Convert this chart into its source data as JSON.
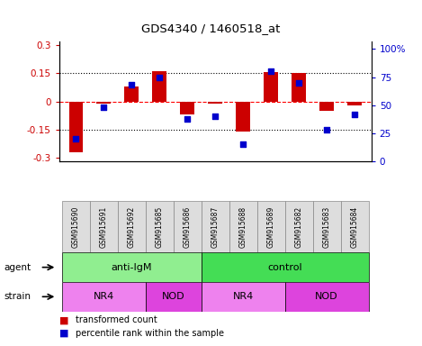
{
  "title": "GDS4340 / 1460518_at",
  "samples": [
    "GSM915690",
    "GSM915691",
    "GSM915692",
    "GSM915685",
    "GSM915686",
    "GSM915687",
    "GSM915688",
    "GSM915689",
    "GSM915682",
    "GSM915683",
    "GSM915684"
  ],
  "red_values": [
    -0.27,
    -0.01,
    0.08,
    0.16,
    -0.07,
    -0.01,
    -0.16,
    0.155,
    0.15,
    -0.05,
    -0.02
  ],
  "blue_values": [
    20,
    48,
    68,
    75,
    38,
    40,
    15,
    80,
    70,
    28,
    42
  ],
  "agent_groups": [
    {
      "label": "anti-IgM",
      "start": 0,
      "end": 4,
      "color": "#90EE90"
    },
    {
      "label": "control",
      "start": 5,
      "end": 10,
      "color": "#44DD55"
    }
  ],
  "strain_groups": [
    {
      "label": "NR4",
      "start": 0,
      "end": 2,
      "color": "#EE82EE"
    },
    {
      "label": "NOD",
      "start": 3,
      "end": 4,
      "color": "#DD44DD"
    },
    {
      "label": "NR4",
      "start": 5,
      "end": 7,
      "color": "#EE82EE"
    },
    {
      "label": "NOD",
      "start": 8,
      "end": 10,
      "color": "#DD44DD"
    }
  ],
  "ylim_left": [
    -0.32,
    0.32
  ],
  "ylim_right": [
    0,
    106.67
  ],
  "yticks_left": [
    -0.3,
    -0.15,
    0,
    0.15,
    0.3
  ],
  "yticks_right": [
    0,
    25,
    50,
    75,
    100
  ],
  "hlines": [
    -0.15,
    0,
    0.15
  ],
  "red_color": "#CC0000",
  "blue_color": "#0000CC",
  "bar_width": 0.5,
  "legend_items": [
    {
      "color": "#CC0000",
      "label": "transformed count"
    },
    {
      "color": "#0000CC",
      "label": "percentile rank within the sample"
    }
  ]
}
